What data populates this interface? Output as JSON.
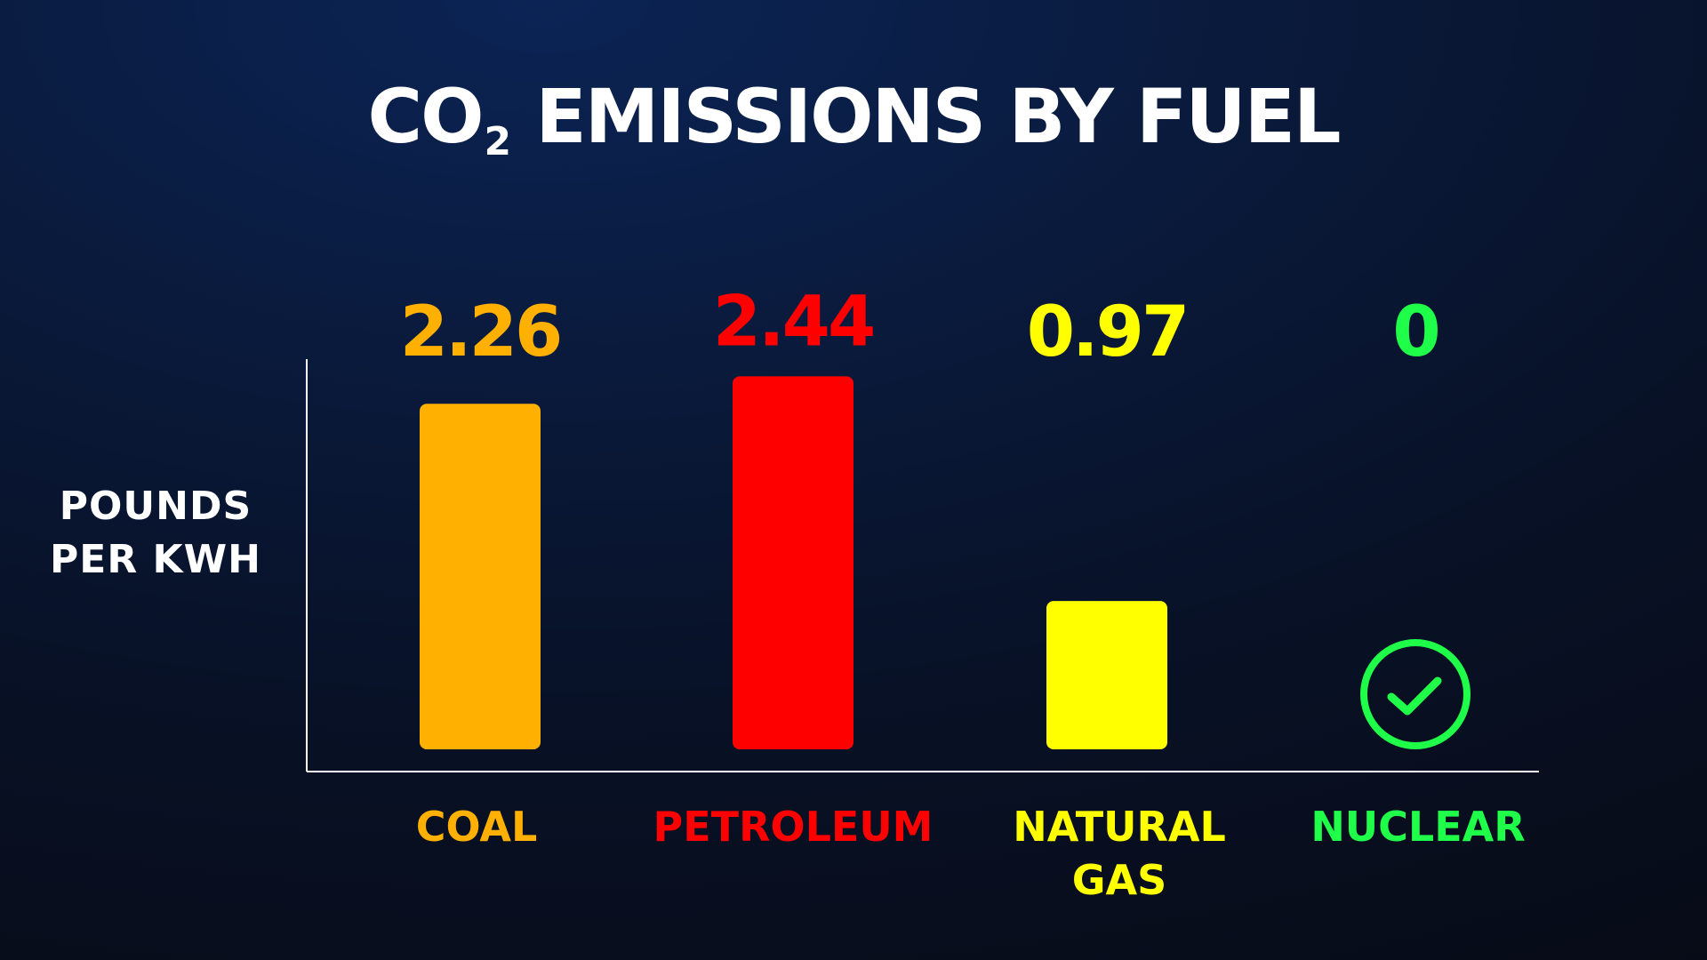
{
  "title": {
    "prefix": "CO",
    "subscript": "2",
    "suffix": " EMISSIONS BY FUEL"
  },
  "axis": {
    "ylabel_lines": [
      "POUNDS",
      "PER KWH"
    ]
  },
  "chart_data": {
    "type": "bar",
    "title": "CO2 EMISSIONS BY FUEL",
    "ylabel": "POUNDS PER KWH",
    "xlabel": "",
    "categories": [
      "COAL",
      "PETROLEUM",
      "NATURAL GAS",
      "NUCLEAR"
    ],
    "category_lines": [
      [
        "COAL"
      ],
      [
        "PETROLEUM"
      ],
      [
        "NATURAL",
        "GAS"
      ],
      [
        "NUCLEAR"
      ]
    ],
    "values": [
      2.26,
      2.44,
      0.97,
      0
    ],
    "value_labels": [
      "2.26",
      "2.44",
      "0.97",
      "0"
    ],
    "colors": [
      "#ffb000",
      "#ff0000",
      "#ffff00",
      "#1fff4a"
    ],
    "ylim": [
      0,
      2.6
    ],
    "grid": false,
    "legend": "none",
    "zero_marker_icon": "check-circle-icon"
  }
}
